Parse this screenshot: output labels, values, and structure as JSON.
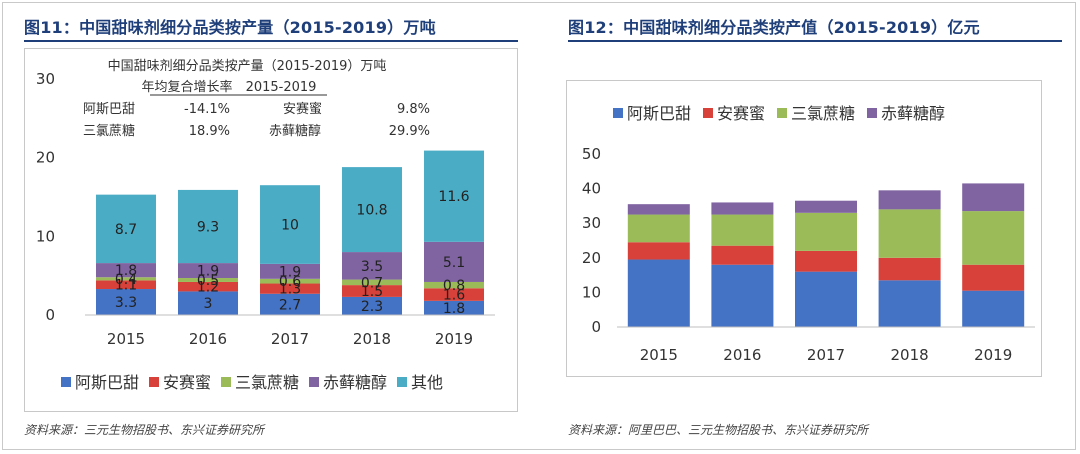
{
  "figures": [
    {
      "title": "图11：中国甜味剂细分品类按产量（2015-2019）万吨",
      "source": "资料来源：三元生物招股书、东兴证券研究所"
    },
    {
      "title": "图12：中国甜味剂细分品类按产值（2015-2019）亿元",
      "source": "资料来源：阿里巴巴、三元生物招股书、东兴证券研究所"
    }
  ],
  "colors": {
    "title_blue": "#1f3f7a",
    "aspartame": "#4472c4",
    "acesulfame": "#d8413a",
    "sucralose": "#9bbb59",
    "erythritol": "#8064a2",
    "other": "#4bacc6"
  },
  "annotation": {
    "line1": "中国甜味剂细分品类按产量（2015-2019）万吨",
    "line2_label": "年均复合增长率",
    "line2_period": "2015-2019",
    "rows": [
      {
        "a_name": "阿斯巴甜",
        "a_value": "-14.1%",
        "b_name": "安赛蜜",
        "b_value": "9.8%"
      },
      {
        "a_name": "三氯蔗糖",
        "a_value": "18.9%",
        "b_name": "赤藓糖醇",
        "b_value": "29.9%"
      }
    ]
  },
  "chart_data": [
    {
      "type": "bar",
      "stacked": true,
      "title": "",
      "xlabel": "",
      "ylabel": "",
      "categories": [
        "2015",
        "2016",
        "2017",
        "2018",
        "2019"
      ],
      "ylim": [
        0,
        30
      ],
      "yticks": [
        0,
        10,
        20,
        30
      ],
      "legend_position": "bottom",
      "series": [
        {
          "name": "阿斯巴甜",
          "color": "#4472c4",
          "values": [
            3.3,
            3.0,
            2.7,
            2.3,
            1.8
          ],
          "labels": [
            "3.3",
            "3",
            "2.7",
            "2.3",
            "1.8"
          ]
        },
        {
          "name": "安赛蜜",
          "color": "#d8413a",
          "values": [
            1.1,
            1.2,
            1.3,
            1.5,
            1.6
          ],
          "labels": [
            "1.1",
            "1.2",
            "1.3",
            "1.5",
            "1.6"
          ]
        },
        {
          "name": "三氯蔗糖",
          "color": "#9bbb59",
          "values": [
            0.4,
            0.5,
            0.6,
            0.7,
            0.8
          ],
          "labels": [
            "0.4",
            "0.5",
            "0.6",
            "0.7",
            "0.8"
          ]
        },
        {
          "name": "赤藓糖醇",
          "color": "#8064a2",
          "values": [
            1.8,
            1.9,
            1.9,
            3.5,
            5.1
          ],
          "labels": [
            "1.8",
            "1.9",
            "1.9",
            "3.5",
            "5.1"
          ]
        },
        {
          "name": "其他",
          "color": "#4bacc6",
          "values": [
            8.7,
            9.3,
            10.0,
            10.8,
            11.6
          ],
          "labels": [
            "8.7",
            "9.3",
            "10",
            "10.8",
            "11.6"
          ]
        }
      ]
    },
    {
      "type": "bar",
      "stacked": true,
      "title": "",
      "xlabel": "",
      "ylabel": "",
      "categories": [
        "2015",
        "2016",
        "2017",
        "2018",
        "2019"
      ],
      "ylim": [
        0,
        50
      ],
      "yticks": [
        0,
        10,
        20,
        30,
        40,
        50
      ],
      "legend_position": "top",
      "series": [
        {
          "name": "阿斯巴甜",
          "color": "#4472c4",
          "values": [
            19.5,
            18.0,
            16.0,
            13.5,
            10.5
          ]
        },
        {
          "name": "安赛蜜",
          "color": "#d8413a",
          "values": [
            5.0,
            5.5,
            6.0,
            6.5,
            7.5
          ]
        },
        {
          "name": "三氯蔗糖",
          "color": "#9bbb59",
          "values": [
            8.0,
            9.0,
            11.0,
            14.0,
            15.5
          ]
        },
        {
          "name": "赤藓糖醇",
          "color": "#8064a2",
          "values": [
            3.0,
            3.5,
            3.5,
            5.5,
            8.0
          ]
        }
      ]
    }
  ]
}
